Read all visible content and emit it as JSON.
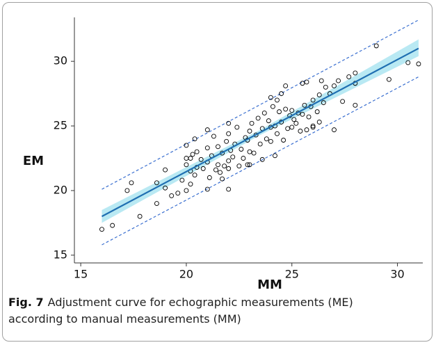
{
  "chart_data": {
    "type": "scatter",
    "xlabel": "MM",
    "ylabel": "EM",
    "xlim": [
      14.7,
      31.2
    ],
    "ylim": [
      14.4,
      33.4
    ],
    "xticks": [
      15,
      20,
      25,
      30
    ],
    "yticks": [
      15,
      20,
      25,
      30
    ],
    "grid": false,
    "point_color": "#000000",
    "fit_color": "#1f6fb2",
    "band_color": "#a8e3f0",
    "interval_color": "#3a6fd0",
    "x": [
      16.0,
      16.5,
      17.2,
      17.4,
      17.8,
      18.6,
      18.6,
      19.0,
      19.0,
      19.3,
      19.6,
      19.8,
      20.0,
      20.0,
      20.2,
      20.2,
      20.4,
      20.5,
      21.0,
      21.0,
      22.0,
      22.0,
      23.0,
      24.0,
      24.3,
      24.7,
      25.5,
      25.7,
      26.4,
      27.0,
      27.2,
      27.4,
      27.7,
      28.0,
      28.0,
      28.0,
      29.0,
      29.6,
      30.5,
      31.0,
      26.0,
      26.3,
      20.0,
      20.0,
      20.2,
      20.3,
      20.4,
      20.5,
      20.7,
      20.8,
      21.0,
      21.0,
      21.1,
      21.2,
      21.3,
      21.4,
      21.5,
      21.5,
      21.6,
      21.7,
      21.8,
      21.9,
      22.0,
      22.0,
      22.0,
      22.1,
      22.2,
      22.3,
      22.4,
      22.5,
      22.6,
      22.7,
      22.8,
      22.9,
      23.0,
      23.0,
      23.1,
      23.2,
      23.3,
      23.4,
      23.5,
      23.6,
      23.7,
      23.8,
      23.9,
      24.0,
      24.0,
      24.1,
      24.2,
      24.3,
      24.4,
      24.5,
      24.6,
      24.7,
      24.8,
      24.9,
      25.0,
      25.0,
      25.1,
      25.2,
      25.3,
      25.4,
      25.5,
      25.6,
      25.8,
      25.9,
      26.0,
      26.2,
      26.3,
      26.5,
      26.6,
      26.8,
      27.0,
      24.2,
      23.6,
      21.7,
      22.9,
      25.7,
      24.5,
      26.0
    ],
    "y": [
      17.0,
      17.3,
      20.0,
      20.6,
      18.0,
      19.0,
      20.6,
      20.2,
      21.6,
      19.6,
      19.8,
      20.8,
      20.0,
      23.5,
      20.5,
      22.5,
      24.0,
      21.8,
      20.1,
      24.7,
      20.1,
      25.2,
      22.0,
      27.2,
      27.0,
      28.1,
      28.3,
      28.4,
      28.5,
      24.7,
      28.5,
      26.9,
      28.8,
      29.1,
      28.3,
      26.6,
      31.2,
      28.6,
      29.9,
      29.8,
      25.0,
      25.3,
      22.0,
      22.5,
      21.5,
      22.8,
      21.2,
      23.0,
      22.4,
      21.7,
      22.2,
      23.3,
      21.0,
      22.7,
      24.2,
      21.6,
      22.0,
      23.4,
      21.4,
      22.9,
      21.9,
      23.8,
      22.3,
      21.7,
      24.4,
      23.1,
      22.6,
      23.6,
      24.9,
      21.9,
      23.2,
      22.5,
      24.1,
      23.9,
      23.0,
      24.6,
      25.2,
      22.9,
      24.3,
      25.6,
      23.6,
      24.8,
      26.0,
      24.0,
      25.4,
      23.8,
      24.9,
      26.5,
      25.0,
      24.4,
      26.1,
      25.3,
      23.9,
      26.3,
      24.8,
      25.8,
      24.9,
      26.2,
      25.5,
      25.2,
      26.0,
      24.6,
      25.9,
      26.6,
      25.7,
      26.5,
      27.0,
      26.1,
      27.4,
      26.8,
      28.0,
      27.5,
      28.1,
      22.7,
      22.4,
      20.9,
      22.0,
      24.7,
      27.5,
      24.9
    ],
    "fit": {
      "x": [
        16,
        31
      ],
      "y": [
        18.0,
        31.0
      ]
    },
    "band": {
      "x": [
        16,
        23.5,
        31
      ],
      "upper": [
        18.5,
        24.7,
        31.7
      ],
      "lower": [
        17.5,
        24.3,
        30.4
      ]
    },
    "interval": {
      "x": [
        16,
        31
      ],
      "upper": [
        20.1,
        33.2
      ],
      "lower": [
        15.8,
        28.8
      ]
    }
  },
  "caption": {
    "label": "Fig. 7",
    "lines": [
      "Adjustment curve for echographic measurements (ME)",
      "according to manual measurements (MM)"
    ]
  }
}
